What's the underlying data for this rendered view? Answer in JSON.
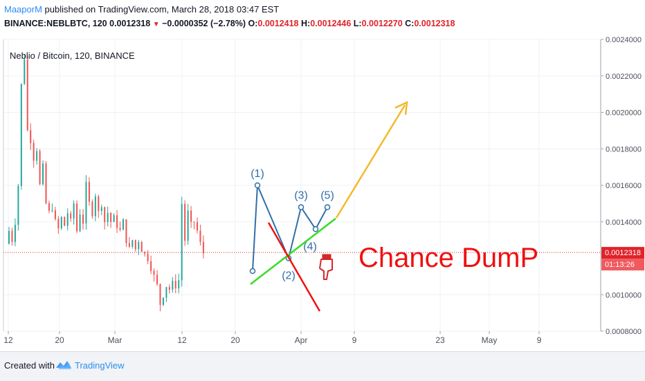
{
  "header": {
    "author": "MaaporM",
    "published": "published on TradingView.com, March 28, 2018 03:47 EST",
    "symbol": "BINANCE:NEBLBTC, 120",
    "last": "0.0012318",
    "change": "−0.0000352 (−2.78%)",
    "o_label": "O:",
    "o": "0.0012418",
    "h_label": "H:",
    "h": "0.0012446",
    "l_label": "L:",
    "l": "0.0012270",
    "c_label": "C:",
    "c": "0.0012318"
  },
  "footer": {
    "created": "Created with",
    "brand": "TradingView"
  },
  "chart_data": {
    "type": "candlestick",
    "title": "Neblio / Bitcoin, 120, BINANCE",
    "ylim": [
      0.0008,
      0.0024
    ],
    "y_ticks": [
      "0.0024000",
      "0.0022000",
      "0.0020000",
      "0.0018000",
      "0.0016000",
      "0.0014000",
      "0.0010000",
      "0.0008000"
    ],
    "x_ticks": [
      "12",
      "20",
      "Mar",
      "12",
      "20",
      "Apr",
      "9",
      "23",
      "May",
      "9"
    ],
    "last_price_label": "0.0012318",
    "countdown_label": "01:13:26",
    "price_trace": [
      0.00128,
      0.00135,
      0.0013,
      0.0014,
      0.0016,
      0.00215,
      0.0023,
      0.0019,
      0.00185,
      0.00175,
      0.0018,
      0.0016,
      0.0017,
      0.0015,
      0.00145,
      0.00148,
      0.0014,
      0.00136,
      0.00142,
      0.00138,
      0.00145,
      0.0014,
      0.0015,
      0.00135,
      0.00145,
      0.0014,
      0.0016,
      0.0015,
      0.00145,
      0.00155,
      0.00145,
      0.0015,
      0.0014,
      0.00145,
      0.0014,
      0.00142,
      0.00138,
      0.00135,
      0.0014,
      0.0013,
      0.00125,
      0.0013,
      0.00125,
      0.0013,
      0.00125,
      0.00122,
      0.0012,
      0.00115,
      0.0011,
      0.00105,
      0.00095,
      0.001,
      0.00105,
      0.00103,
      0.00106,
      0.00105,
      0.00108,
      0.0015,
      0.0013,
      0.00145,
      0.00138,
      0.0014,
      0.00135,
      0.00128,
      0.00123
    ],
    "wave_points": [
      {
        "label": "",
        "date_index": 62,
        "price": 0.00113
      },
      {
        "label": "(1)",
        "date_index": 65,
        "price": 0.0016
      },
      {
        "label": "(2)",
        "date_index": 71,
        "price": 0.0012
      },
      {
        "label": "(3)",
        "date_index": 75,
        "price": 0.00148
      },
      {
        "label": "(4)",
        "date_index": 79,
        "price": 0.00136
      },
      {
        "label": "(5)",
        "date_index": 82,
        "price": 0.00148
      }
    ],
    "annotation": "Chance DumP",
    "colors": {
      "up": "#26a69a",
      "down": "#ef5350",
      "price": "#e0232b",
      "wave": "#2f6fa8",
      "support": "#33dd22",
      "breakdown": "#ee1111",
      "target": "#f2b92a"
    }
  }
}
